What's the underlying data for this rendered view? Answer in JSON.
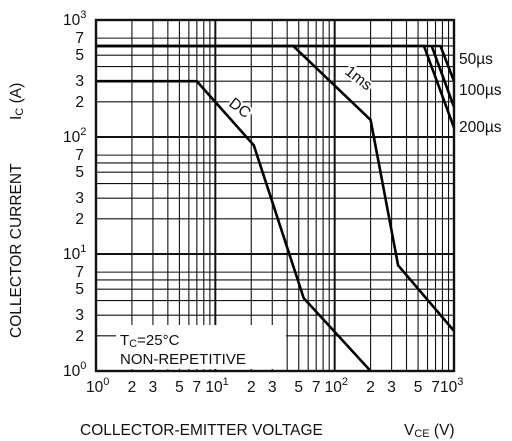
{
  "chart_data": {
    "type": "line",
    "title": "",
    "xlabel": "COLLECTOR-EMITTER VOLTAGE",
    "xlabel_symbol": "VCE",
    "xlabel_unit": "(V)",
    "ylabel": "COLLECTOR CURRENT",
    "ylabel_symbol": "IC",
    "ylabel_unit": "(A)",
    "x_scale": "log",
    "y_scale": "log",
    "xlim": [
      1,
      1000
    ],
    "ylim": [
      1,
      1000
    ],
    "grid": true,
    "legend": "none",
    "x_decade_ticks": [
      {
        "value": 1,
        "base": "10",
        "exp": "0"
      },
      {
        "value": 10,
        "base": "10",
        "exp": "1"
      },
      {
        "value": 100,
        "base": "10",
        "exp": "2"
      },
      {
        "value": 1000,
        "base": "10",
        "exp": "3"
      }
    ],
    "x_minor_ticks": [
      {
        "value": 2,
        "label": "2"
      },
      {
        "value": 3,
        "label": "3"
      },
      {
        "value": 5,
        "label": "5"
      },
      {
        "value": 7,
        "label": "7"
      },
      {
        "value": 20,
        "label": "2"
      },
      {
        "value": 30,
        "label": "3"
      },
      {
        "value": 50,
        "label": "5"
      },
      {
        "value": 70,
        "label": "7"
      },
      {
        "value": 200,
        "label": "2"
      },
      {
        "value": 300,
        "label": "3"
      },
      {
        "value": 500,
        "label": "5"
      },
      {
        "value": 700,
        "label": "7"
      }
    ],
    "y_decade_ticks": [
      {
        "value": 1,
        "base": "10",
        "exp": "0"
      },
      {
        "value": 10,
        "base": "10",
        "exp": "1"
      },
      {
        "value": 100,
        "base": "10",
        "exp": "2"
      },
      {
        "value": 1000,
        "base": "10",
        "exp": "3"
      }
    ],
    "y_minor_ticks": [
      {
        "value": 2,
        "label": "2"
      },
      {
        "value": 3,
        "label": "3"
      },
      {
        "value": 5,
        "label": "5"
      },
      {
        "value": 7,
        "label": "7"
      },
      {
        "value": 20,
        "label": "2"
      },
      {
        "value": 30,
        "label": "3"
      },
      {
        "value": 50,
        "label": "5"
      },
      {
        "value": 70,
        "label": "7"
      },
      {
        "value": 200,
        "label": "2"
      },
      {
        "value": 300,
        "label": "3"
      },
      {
        "value": 500,
        "label": "5"
      },
      {
        "value": 700,
        "label": "7"
      }
    ],
    "series": [
      {
        "name": "DC",
        "points": [
          [
            1,
            300
          ],
          [
            7,
            300
          ],
          [
            21,
            85
          ],
          [
            55,
            4.2
          ],
          [
            200,
            1
          ]
        ]
      },
      {
        "name": "1ms",
        "points": [
          [
            1,
            600
          ],
          [
            45,
            600
          ],
          [
            200,
            140
          ],
          [
            340,
            8
          ],
          [
            1000,
            2.2
          ]
        ]
      },
      {
        "name": "100µs",
        "points": [
          [
            1,
            600
          ],
          [
            560,
            600
          ],
          [
            1000,
            120
          ]
        ]
      },
      {
        "name": "50µs",
        "points": [
          [
            1,
            600
          ],
          [
            770,
            600
          ],
          [
            1000,
            300
          ]
        ]
      },
      {
        "name": "200µs",
        "points": [
          [
            650,
            600
          ],
          [
            1000,
            180
          ]
        ]
      }
    ],
    "annotations": [
      {
        "key": "tc",
        "text": "TC=25°C",
        "sub": "C"
      },
      {
        "key": "nonrep",
        "text": "NON-REPETITIVE"
      }
    ]
  }
}
